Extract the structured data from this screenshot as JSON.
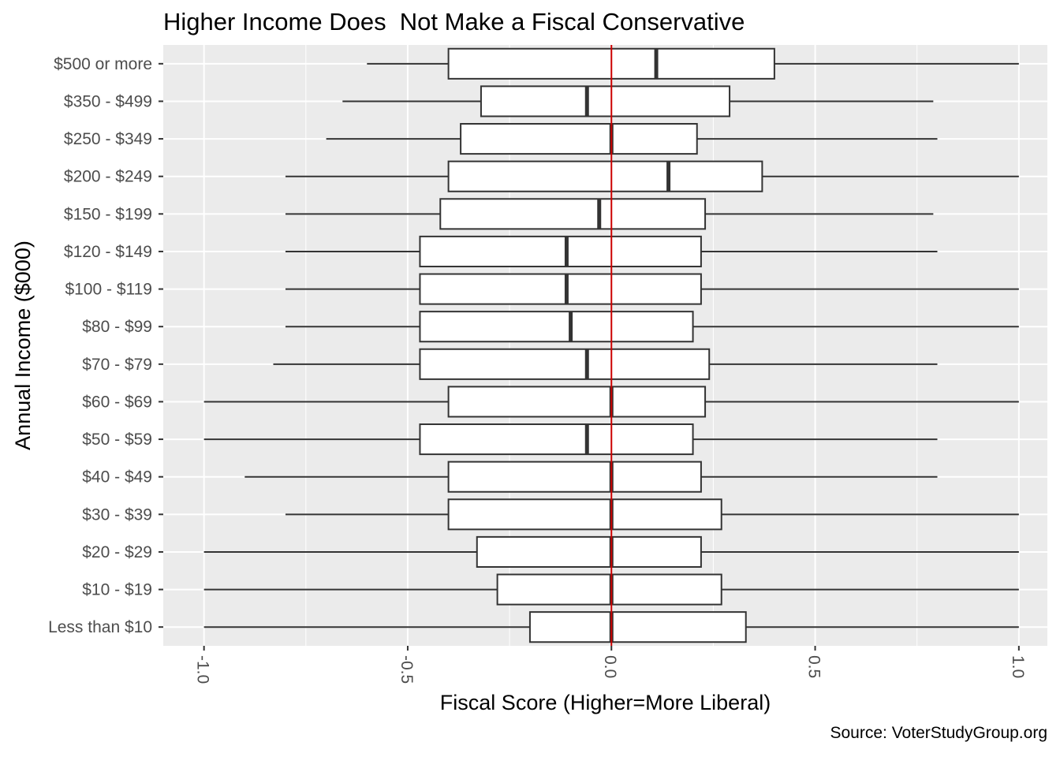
{
  "chart_data": {
    "type": "boxplot",
    "title": "Higher Income Does  Not Make a Fiscal Conservative",
    "xlabel": "Fiscal Score (Higher=More Liberal)",
    "ylabel": "Annual Income ($000)",
    "caption": "Source: VoterStudyGroup.org",
    "xlim": [
      -1.1,
      1.07
    ],
    "x_ticks": [
      -1.0,
      -0.5,
      0.0,
      0.5,
      1.0
    ],
    "x_tick_labels": [
      "-1.0",
      "-0.5",
      "0.0",
      "0.5",
      "1.0"
    ],
    "reference_line": {
      "x": 0,
      "color": "#cc0000"
    },
    "grid": true,
    "categories": [
      "$500 or more",
      "$350 - $499",
      "$250 - $349",
      "$200 - $249",
      "$150 - $199",
      "$120 - $149",
      "$100 - $119",
      "$80 - $99",
      "$70 - $79",
      "$60 - $69",
      "$50 - $59",
      "$40 - $49",
      "$30 - $39",
      "$20 - $29",
      "$10 - $19",
      "Less than $10"
    ],
    "boxes": [
      {
        "category": "$500 or more",
        "whisker_low": -0.6,
        "q1": -0.4,
        "median": 0.11,
        "q3": 0.4,
        "whisker_high": 1.0
      },
      {
        "category": "$350 - $499",
        "whisker_low": -0.66,
        "q1": -0.32,
        "median": -0.06,
        "q3": 0.29,
        "whisker_high": 0.79
      },
      {
        "category": "$250 - $349",
        "whisker_low": -0.7,
        "q1": -0.37,
        "median": 0.0,
        "q3": 0.21,
        "whisker_high": 0.8
      },
      {
        "category": "$200 - $249",
        "whisker_low": -0.8,
        "q1": -0.4,
        "median": 0.14,
        "q3": 0.37,
        "whisker_high": 1.0
      },
      {
        "category": "$150 - $199",
        "whisker_low": -0.8,
        "q1": -0.42,
        "median": -0.03,
        "q3": 0.23,
        "whisker_high": 0.79
      },
      {
        "category": "$120 - $149",
        "whisker_low": -0.8,
        "q1": -0.47,
        "median": -0.11,
        "q3": 0.22,
        "whisker_high": 0.8
      },
      {
        "category": "$100 - $119",
        "whisker_low": -0.8,
        "q1": -0.47,
        "median": -0.11,
        "q3": 0.22,
        "whisker_high": 1.0
      },
      {
        "category": "$80 - $99",
        "whisker_low": -0.8,
        "q1": -0.47,
        "median": -0.1,
        "q3": 0.2,
        "whisker_high": 1.0
      },
      {
        "category": "$70 - $79",
        "whisker_low": -0.83,
        "q1": -0.47,
        "median": -0.06,
        "q3": 0.24,
        "whisker_high": 0.8
      },
      {
        "category": "$60 - $69",
        "whisker_low": -1.0,
        "q1": -0.4,
        "median": 0.0,
        "q3": 0.23,
        "whisker_high": 1.0
      },
      {
        "category": "$50 - $59",
        "whisker_low": -1.0,
        "q1": -0.47,
        "median": -0.06,
        "q3": 0.2,
        "whisker_high": 0.8
      },
      {
        "category": "$40 - $49",
        "whisker_low": -0.9,
        "q1": -0.4,
        "median": 0.0,
        "q3": 0.22,
        "whisker_high": 0.8
      },
      {
        "category": "$30 - $39",
        "whisker_low": -0.8,
        "q1": -0.4,
        "median": 0.0,
        "q3": 0.27,
        "whisker_high": 1.0
      },
      {
        "category": "$20 - $29",
        "whisker_low": -1.0,
        "q1": -0.33,
        "median": 0.0,
        "q3": 0.22,
        "whisker_high": 1.0
      },
      {
        "category": "$10 - $19",
        "whisker_low": -1.0,
        "q1": -0.28,
        "median": 0.0,
        "q3": 0.27,
        "whisker_high": 1.0
      },
      {
        "category": "Less than $10",
        "whisker_low": -1.0,
        "q1": -0.2,
        "median": 0.0,
        "q3": 0.33,
        "whisker_high": 1.0
      }
    ],
    "colors": {
      "panel": "#ebebeb",
      "grid": "#ffffff",
      "box_fill": "#ffffff",
      "box_stroke": "#333333",
      "reference_line": "#cc0000",
      "tick_label": "#4d4d4d"
    }
  }
}
